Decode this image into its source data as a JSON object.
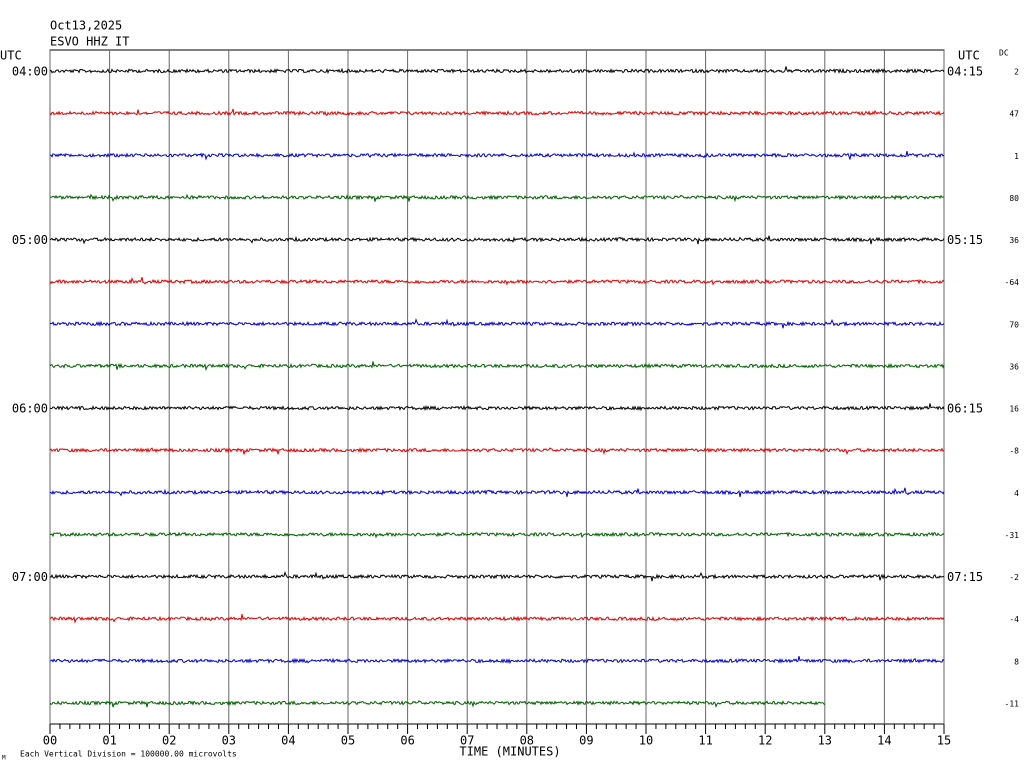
{
  "chart_data": {
    "type": "helicorder",
    "title": "Oct13,2025",
    "subtitle": "ESVO HHZ IT",
    "left_axis_label": "UTC",
    "right_axis_label": "UTC",
    "dc_label": "DC",
    "colors": [
      "#000000",
      "#e00000",
      "#0000d0",
      "#006000"
    ],
    "rows": [
      {
        "left": "04:00",
        "right": "04:15",
        "dc": 2
      },
      {
        "left": null,
        "right": null,
        "dc": 47
      },
      {
        "left": null,
        "right": null,
        "dc": 1
      },
      {
        "left": null,
        "right": null,
        "dc": 80
      },
      {
        "left": "05:00",
        "right": "05:15",
        "dc": 36
      },
      {
        "left": null,
        "right": null,
        "dc": -64
      },
      {
        "left": null,
        "right": null,
        "dc": 70
      },
      {
        "left": null,
        "right": null,
        "dc": 36
      },
      {
        "left": "06:00",
        "right": "06:15",
        "dc": 16
      },
      {
        "left": null,
        "right": null,
        "dc": -8
      },
      {
        "left": null,
        "right": null,
        "dc": 4
      },
      {
        "left": null,
        "right": null,
        "dc": -31
      },
      {
        "left": "07:00",
        "right": "07:15",
        "dc": -2
      },
      {
        "left": null,
        "right": null,
        "dc": -4
      },
      {
        "left": null,
        "right": null,
        "dc": 8
      },
      {
        "left": null,
        "right": null,
        "dc": -11
      }
    ],
    "xlim": [
      0,
      15
    ],
    "xticks": [
      {
        "value": 0,
        "label": "00"
      },
      {
        "value": 1,
        "label": "01"
      },
      {
        "value": 2,
        "label": "02"
      },
      {
        "value": 3,
        "label": "03"
      },
      {
        "value": 4,
        "label": "04"
      },
      {
        "value": 5,
        "label": "05"
      },
      {
        "value": 6,
        "label": "06"
      },
      {
        "value": 7,
        "label": "07"
      },
      {
        "value": 8,
        "label": "08"
      },
      {
        "value": 9,
        "label": "09"
      },
      {
        "value": 10,
        "label": "10"
      },
      {
        "value": 11,
        "label": "11"
      },
      {
        "value": 12,
        "label": "12"
      },
      {
        "value": 13,
        "label": "13"
      },
      {
        "value": 14,
        "label": "14"
      },
      {
        "value": 15,
        "label": "15"
      }
    ],
    "xlabel": "TIME (MINUTES)",
    "note": "Each Vertical Division = 100000.00 microvolts",
    "logo": "M"
  }
}
